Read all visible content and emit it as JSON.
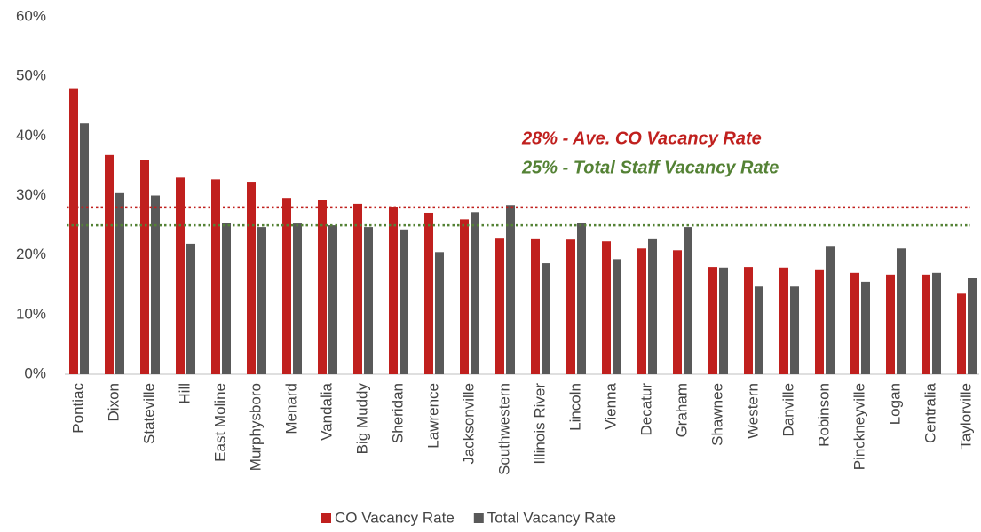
{
  "chart_data": {
    "type": "bar",
    "categories": [
      "Pontiac",
      "Dixon",
      "Stateville",
      "Hill",
      "East Moline",
      "Murphysboro",
      "Menard",
      "Vandalia",
      "Big Muddy",
      "Sheridan",
      "Lawrence",
      "Jacksonville",
      "Southwestern",
      "Illinois River",
      "Lincoln",
      "Vienna",
      "Decatur",
      "Graham",
      "Shawnee",
      "Western",
      "Danville",
      "Robinson",
      "Pinckneyville",
      "Logan",
      "Centralia",
      "Taylorville"
    ],
    "series": [
      {
        "name": "CO Vacancy Rate",
        "color": "#c0201e",
        "values": [
          48,
          36.8,
          36,
          33,
          32.7,
          32.3,
          29.6,
          29.2,
          28.6,
          28.1,
          27.1,
          26,
          22.9,
          22.8,
          22.6,
          22.3,
          21.1,
          20.8,
          18,
          18,
          17.9,
          17.6,
          17,
          16.7,
          16.7,
          13.5
        ]
      },
      {
        "name": "Total Vacancy Rate",
        "color": "#595959",
        "values": [
          42.1,
          30.4,
          30,
          21.9,
          25.4,
          24.7,
          25.3,
          25,
          24.7,
          24.3,
          20.5,
          27.2,
          28.4,
          18.6,
          25.4,
          19.3,
          22.8,
          24.7,
          17.9,
          14.7,
          14.7,
          21.4,
          15.5,
          21.1,
          17,
          16.1
        ]
      }
    ],
    "ylim": [
      0,
      60
    ],
    "yticks": [
      {
        "value": 0,
        "label": "0%"
      },
      {
        "value": 10,
        "label": "10%"
      },
      {
        "value": 20,
        "label": "20%"
      },
      {
        "value": 30,
        "label": "30%"
      },
      {
        "value": 40,
        "label": "40%"
      },
      {
        "value": 50,
        "label": "50%"
      },
      {
        "value": 60,
        "label": "60%"
      }
    ],
    "grid": false,
    "legend": "bottom",
    "reference_lines": [
      {
        "value": 28,
        "label": "28% - Ave. CO Vacancy Rate",
        "color": "#c0201e"
      },
      {
        "value": 25,
        "label": "25% - Total Staff Vacancy Rate",
        "color": "#548235"
      }
    ]
  }
}
